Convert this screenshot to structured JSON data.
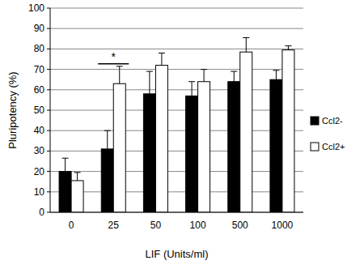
{
  "chart_data": {
    "type": "bar",
    "x_label": "LIF (Units/ml)",
    "y_label": "Pluripotency (%)",
    "categories": [
      "0",
      "25",
      "50",
      "100",
      "500",
      "1000"
    ],
    "series": [
      {
        "name": "Ccl2-",
        "color": "#000000",
        "values": [
          20,
          31,
          58,
          57,
          64,
          65
        ],
        "errors": [
          6.5,
          9,
          11,
          7,
          5,
          4.5
        ]
      },
      {
        "name": "Ccl2+",
        "color": "#ffffff",
        "values": [
          15.5,
          63,
          72,
          64,
          78.5,
          79.5
        ],
        "errors": [
          4,
          8.5,
          6,
          6,
          7,
          2
        ]
      }
    ],
    "ylim": [
      0,
      100
    ],
    "yticks": [
      0,
      10,
      20,
      30,
      40,
      50,
      60,
      70,
      80,
      90,
      100
    ],
    "grid": true,
    "legend": "right",
    "annotations": [
      {
        "text": "*",
        "x": "25"
      }
    ]
  }
}
